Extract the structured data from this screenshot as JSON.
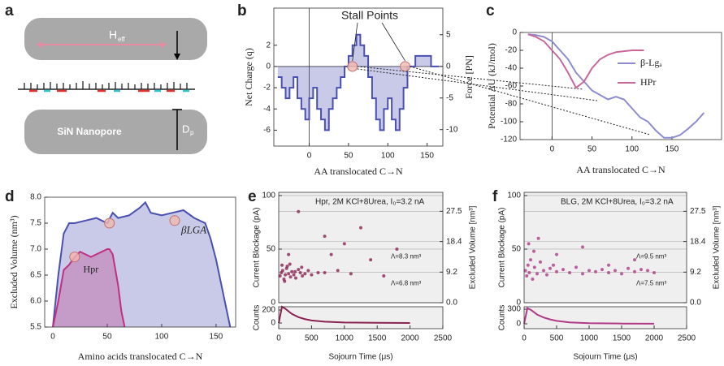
{
  "diagram": {
    "panel_label": "a",
    "top_plate_label": "H",
    "top_plate_sub": "eff",
    "bottom_plate_label": "SiN Nanopore",
    "pore_label": "D",
    "pore_sub": "p"
  },
  "chart_data": [
    {
      "type": "area",
      "step": true,
      "panel_label": "b",
      "annotation": "Stall Points",
      "ylabel": "Net Charge (q)",
      "y2label": "Force [PN]",
      "xlabel": "AA translocated C→N",
      "xlim": [
        -45,
        170
      ],
      "xticks": [
        0,
        50,
        100,
        150
      ],
      "ylim": [
        -7.5,
        5.5
      ],
      "yticks": [
        2,
        0,
        -2,
        -4,
        -6
      ],
      "y2lim": [
        -12.6,
        9.2
      ],
      "y2ticks": [
        5,
        0,
        -5,
        -10
      ],
      "series": [
        {
          "color": "#4a50b0",
          "x": [
            -40,
            -35,
            -30,
            -25,
            -20,
            -15,
            -10,
            -5,
            0,
            5,
            10,
            15,
            20,
            25,
            30,
            35,
            40,
            45,
            50,
            55,
            60,
            65,
            70,
            75,
            80,
            85,
            90,
            95,
            100,
            105,
            110,
            115,
            120,
            125,
            130,
            135,
            140,
            145,
            150,
            155,
            160,
            165
          ],
          "values": [
            -1,
            -2,
            -3,
            -2,
            -1,
            -3,
            -4,
            -5,
            -3,
            -2,
            -4,
            -5,
            -6,
            -4,
            -3,
            -2,
            -1,
            0,
            1,
            2,
            3,
            2,
            1,
            -1,
            -3,
            -5,
            -6,
            -4,
            -3,
            -5,
            -6,
            -4,
            -2,
            0,
            0,
            1,
            1,
            1,
            1,
            0,
            0,
            0
          ]
        }
      ],
      "stall_points": {
        "x": [
          55,
          122
        ],
        "y": [
          0,
          0
        ]
      }
    },
    {
      "type": "line",
      "panel_label": "c",
      "ylabel": "Potential ΔU (kJ/mol)",
      "xlabel": "AA translocated C→N",
      "xlim": [
        -40,
        212
      ],
      "xticks": [
        0,
        50,
        100,
        150
      ],
      "ylim": [
        -120,
        0
      ],
      "yticks": [
        0,
        -20,
        -40,
        -60,
        -80,
        -100,
        -120
      ],
      "legend": "upper right",
      "series": [
        {
          "name": "β-Lgₐ",
          "color": "#8c8cd0",
          "x": [
            -30,
            -20,
            -10,
            0,
            10,
            20,
            30,
            40,
            50,
            60,
            70,
            80,
            90,
            100,
            110,
            120,
            130,
            140,
            150,
            160,
            170,
            180,
            190
          ],
          "values": [
            -2,
            -3,
            -5,
            -10,
            -20,
            -30,
            -45,
            -55,
            -65,
            -70,
            -75,
            -72,
            -75,
            -85,
            -95,
            -100,
            -110,
            -118,
            -118,
            -115,
            -108,
            -100,
            -90
          ]
        },
        {
          "name": "HPr",
          "color": "#c8689a",
          "x": [
            -30,
            -20,
            -10,
            0,
            10,
            20,
            30,
            40,
            50,
            60,
            70,
            80,
            90,
            100,
            110,
            115
          ],
          "values": [
            -2,
            -5,
            -10,
            -20,
            -30,
            -45,
            -62,
            -55,
            -40,
            -30,
            -25,
            -22,
            -21,
            -20,
            -20,
            -20
          ]
        }
      ]
    },
    {
      "type": "area",
      "panel_label": "d",
      "ylabel": "Excluded Volume (nm³)",
      "xlabel": "Amino acids translocated C→N",
      "xlim": [
        -7.5,
        168
      ],
      "xticks": [
        0,
        50,
        100,
        150
      ],
      "ylim": [
        5.5,
        8.0
      ],
      "yticks": [
        5.5,
        {
          "value": 6,
          "label": "6.0"
        },
        6.5,
        {
          "value": 7,
          "label": "7.0"
        },
        7.5,
        {
          "value": 8,
          "label": "8.0"
        }
      ],
      "series": [
        {
          "name": "βLGA",
          "color": "#4a50b0",
          "x": [
            0,
            5,
            10,
            15,
            20,
            30,
            40,
            50,
            55,
            60,
            70,
            80,
            85,
            90,
            100,
            110,
            120,
            130,
            140,
            145,
            150,
            155,
            160,
            163
          ],
          "values": [
            5.5,
            6.5,
            7.3,
            7.5,
            7.5,
            7.55,
            7.6,
            7.5,
            7.7,
            7.6,
            7.65,
            7.8,
            7.9,
            7.7,
            7.65,
            7.7,
            7.75,
            7.6,
            7.5,
            7.2,
            6.8,
            6.3,
            5.8,
            5.5
          ]
        },
        {
          "name": "Hpr",
          "color": "#c03080",
          "x": [
            0,
            5,
            10,
            15,
            20,
            25,
            30,
            35,
            40,
            45,
            50,
            52,
            55,
            60,
            63,
            66
          ],
          "values": [
            5.5,
            6.0,
            6.6,
            6.7,
            6.85,
            6.95,
            6.9,
            6.85,
            6.9,
            6.95,
            7.0,
            7.0,
            6.9,
            6.3,
            5.8,
            5.5
          ]
        }
      ],
      "highlighted_points": {
        "x": [
          20,
          52,
          112
        ],
        "y": [
          6.85,
          7.5,
          7.55
        ]
      }
    },
    {
      "type": "scatter",
      "panel_label": "e",
      "ylabel": "Current Blockage (pA)",
      "y2label": "Excluded Volume [nm³]",
      "xlim": [
        0,
        2500
      ],
      "ylim": [
        0,
        103
      ],
      "yticks": [
        0,
        50,
        100
      ],
      "y2lim": [
        0,
        33.2
      ],
      "y2ticks": [
        {
          "value": 0,
          "label": "0.0"
        },
        9.2,
        18.4,
        27.5
      ],
      "grid": true,
      "annotations": [
        "Hpr, 2M KCl+8Urea, I₀=3.2 nA",
        "Λ=8.3 nm³",
        "Λ=6.8 nm³"
      ],
      "series": [
        {
          "color": "#8b2252",
          "x": [
            20,
            40,
            60,
            80,
            100,
            120,
            150,
            180,
            200,
            230,
            260,
            300,
            330,
            360,
            400,
            450,
            500,
            50,
            90,
            130,
            170,
            250,
            350,
            600,
            700,
            800,
            900,
            1000,
            1100,
            1250,
            1400,
            1600,
            1800,
            300,
            150,
            700
          ],
          "values": [
            25,
            28,
            30,
            22,
            26,
            32,
            27,
            24,
            29,
            26,
            23,
            31,
            28,
            25,
            27,
            30,
            26,
            35,
            20,
            34,
            36,
            29,
            33,
            28,
            62,
            45,
            30,
            55,
            27,
            70,
            40,
            25,
            50,
            85,
            45,
            28
          ]
        }
      ]
    },
    {
      "type": "line",
      "ylabel": "Counts",
      "xlabel": "Sojourn Time (μs)",
      "xlim": [
        0,
        2500
      ],
      "xticks": [
        0,
        500,
        1000,
        1500,
        2000,
        2500
      ],
      "ylim": [
        -87,
        250
      ],
      "yticks": [
        0,
        200
      ],
      "series": [
        {
          "color": "#8b2252",
          "x": [
            0,
            50,
            100,
            150,
            200,
            300,
            400,
            500,
            700,
            1000,
            1500,
            2000
          ],
          "values": [
            0,
            250,
            220,
            180,
            140,
            90,
            60,
            40,
            20,
            8,
            3,
            1
          ]
        }
      ]
    },
    {
      "type": "scatter",
      "panel_label": "f",
      "ylabel": "Current Blockage (pA)",
      "y2label": "Excluded Volume [nm³]",
      "xlim": [
        0,
        2500
      ],
      "ylim": [
        0,
        103
      ],
      "yticks": [
        0,
        50,
        100
      ],
      "y2lim": [
        0,
        33.2
      ],
      "y2ticks": [
        {
          "value": 0,
          "label": "0.0"
        },
        9.2,
        18.4,
        27.5
      ],
      "grid": true,
      "annotations": [
        "BLG, 2M KCl+8Urea, I₀=3.2 nA",
        "Λ=9.5 nm³",
        "Λ=7.5 nm³"
      ],
      "series": [
        {
          "color": "#b03a88",
          "x": [
            20,
            40,
            60,
            80,
            100,
            130,
            160,
            200,
            250,
            300,
            350,
            400,
            450,
            500,
            600,
            700,
            800,
            900,
            1000,
            1100,
            1200,
            1300,
            1400,
            1500,
            1600,
            1700,
            1800,
            1900,
            2000,
            70,
            150,
            220,
            500,
            900,
            1300,
            1700
          ],
          "values": [
            30,
            25,
            35,
            28,
            40,
            22,
            33,
            27,
            38,
            30,
            26,
            32,
            35,
            29,
            31,
            28,
            33,
            27,
            30,
            29,
            31,
            28,
            30,
            27,
            32,
            29,
            31,
            30,
            28,
            55,
            48,
            60,
            45,
            52,
            35,
            40
          ]
        }
      ]
    },
    {
      "type": "line",
      "ylabel": "Counts",
      "xlabel": "Sojourn Time (μs)",
      "xlim": [
        0,
        2500
      ],
      "xticks": [
        0,
        500,
        1000,
        1500,
        2000,
        2500
      ],
      "ylim": [
        -100,
        350
      ],
      "yticks": [
        0,
        300
      ],
      "series": [
        {
          "color": "#b03a88",
          "x": [
            0,
            50,
            100,
            150,
            200,
            300,
            400,
            500,
            700,
            1000,
            1500,
            2000
          ],
          "values": [
            0,
            320,
            290,
            240,
            190,
            130,
            90,
            60,
            30,
            12,
            5,
            2
          ]
        }
      ]
    }
  ]
}
